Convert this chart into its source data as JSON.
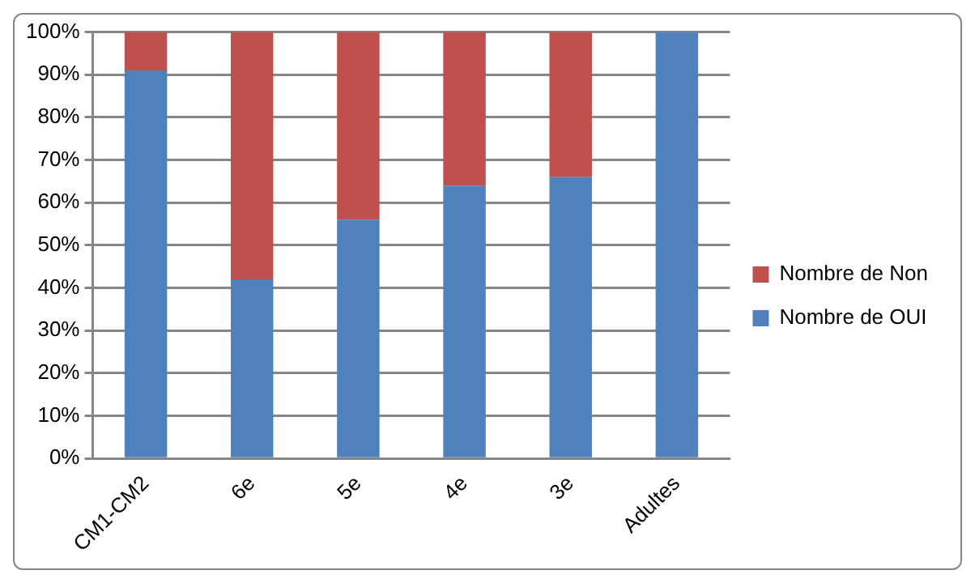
{
  "chart_data": {
    "type": "bar",
    "stacked": true,
    "categories": [
      "CM1-CM2",
      "6e",
      "5e",
      "4e",
      "3e",
      "Adultes"
    ],
    "series": [
      {
        "name": "Nombre de OUI",
        "color": "#4f81bd",
        "values": [
          91,
          42,
          56,
          64,
          66,
          100
        ]
      },
      {
        "name": "Nombre de Non",
        "color": "#c0504d",
        "values": [
          9,
          58,
          44,
          36,
          34,
          0
        ]
      }
    ],
    "ylim": [
      0,
      100
    ],
    "yticks": [
      {
        "value": 0,
        "label": "0%"
      },
      {
        "value": 10,
        "label": "10%"
      },
      {
        "value": 20,
        "label": "20%"
      },
      {
        "value": 30,
        "label": "30%"
      },
      {
        "value": 40,
        "label": "40%"
      },
      {
        "value": 50,
        "label": "50%"
      },
      {
        "value": 60,
        "label": "60%"
      },
      {
        "value": 70,
        "label": "70%"
      },
      {
        "value": 80,
        "label": "80%"
      },
      {
        "value": 90,
        "label": "90%"
      },
      {
        "value": 100,
        "label": "100%"
      }
    ],
    "grid": "y",
    "legend": "right"
  }
}
